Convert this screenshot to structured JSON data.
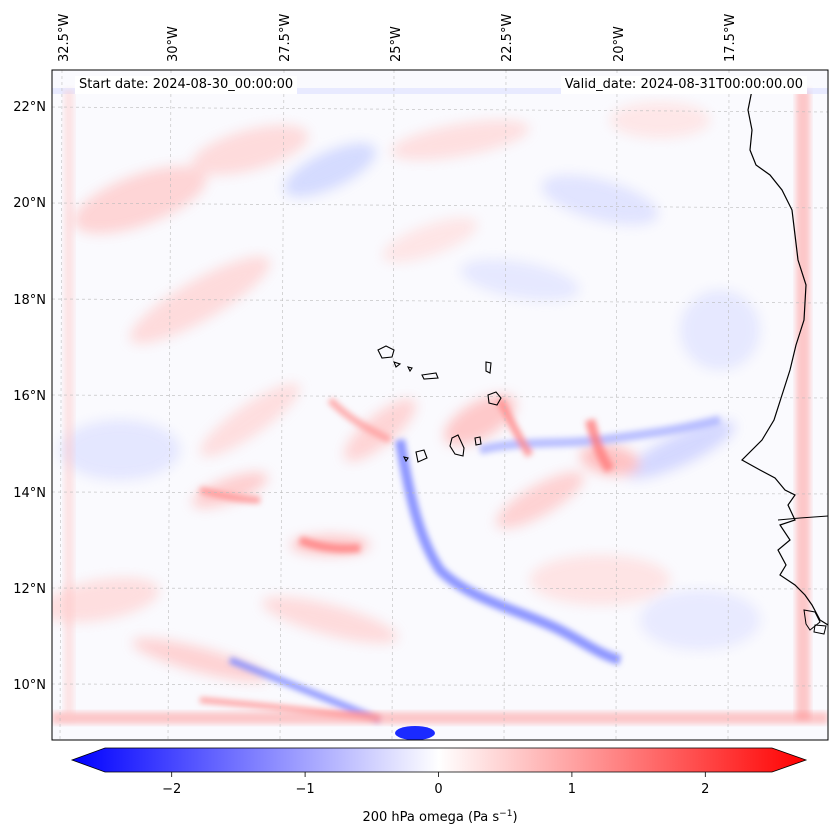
{
  "header": {
    "start_date": "Start date: 2024-08-30_00:00:00",
    "valid_date": "Valid_date: 2024-08-31T00:00:00.00"
  },
  "map": {
    "lon_labels": [
      "32.5°W",
      "30°W",
      "27.5°W",
      "25°W",
      "22.5°W",
      "20°W",
      "17.5°W"
    ],
    "lat_labels": [
      "22°N",
      "20°N",
      "18°N",
      "16°N",
      "14°N",
      "12°N",
      "10°N"
    ],
    "gridlines": true,
    "features": [
      "West Africa coastline",
      "Cape Verde islands"
    ],
    "field_description": "200 hPa vertical velocity (omega) shaded, blue negative / red positive"
  },
  "colorbar": {
    "label": "200 hPa omega (Pa s",
    "label_sup": "−1",
    "label_tail": ")",
    "ticks": [
      "−2",
      "−1",
      "0",
      "1",
      "2"
    ],
    "tick_values": [
      -2,
      -1,
      0,
      1,
      2
    ],
    "range": [
      -2.5,
      2.5
    ],
    "extend": "both",
    "colors": {
      "negative": "#0000ff",
      "zero": "#ffffff",
      "positive": "#ff0000"
    }
  }
}
